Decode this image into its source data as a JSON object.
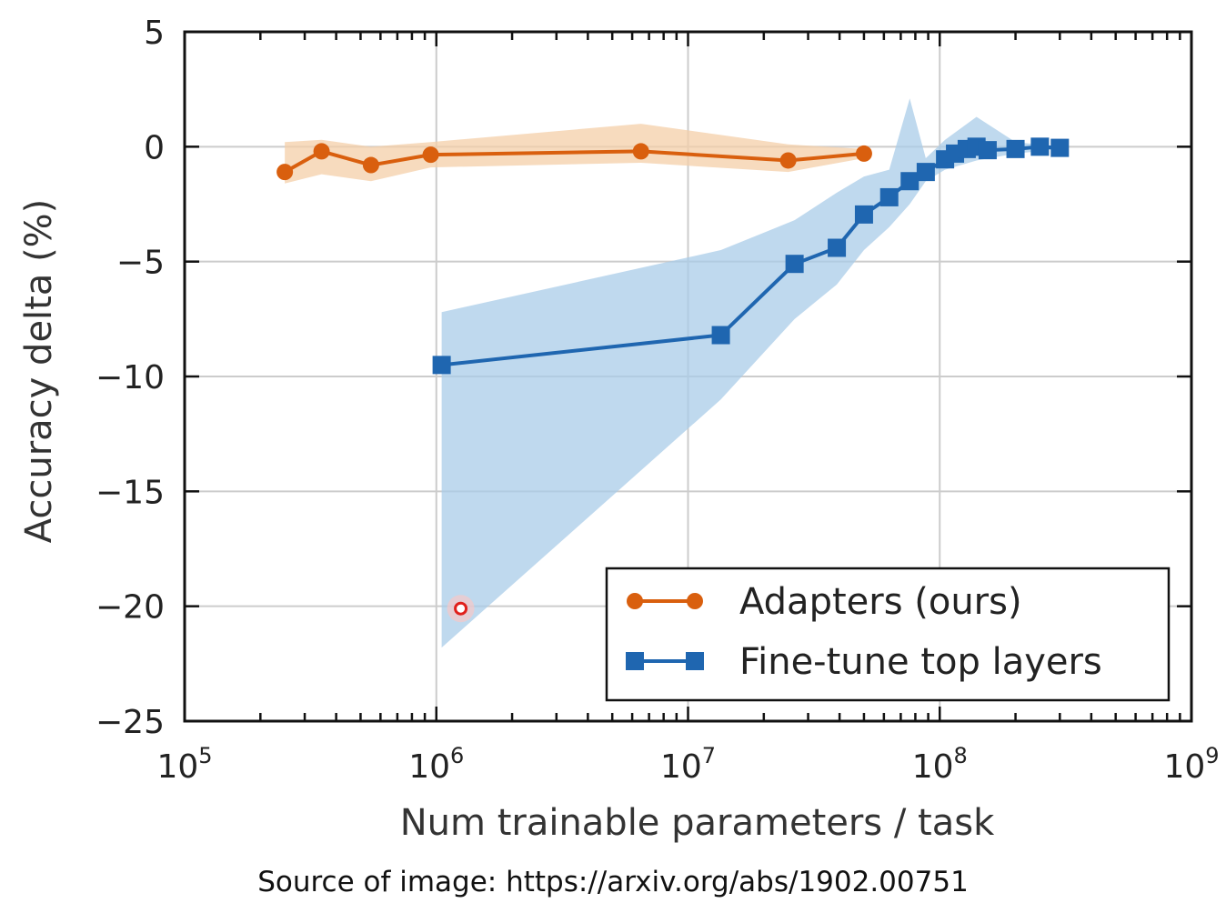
{
  "chart_data": {
    "type": "line",
    "xscale": "log",
    "xlim": [
      100000,
      1000000000
    ],
    "ylim": [
      -25,
      5
    ],
    "grid": true,
    "xlabel": "Num trainable parameters / task",
    "ylabel": "Accuracy delta (%)",
    "x_ticks": [
      {
        "value": 100000,
        "base": "10",
        "exp": "5"
      },
      {
        "value": 1000000,
        "base": "10",
        "exp": "6"
      },
      {
        "value": 10000000,
        "base": "10",
        "exp": "7"
      },
      {
        "value": 100000000,
        "base": "10",
        "exp": "8"
      },
      {
        "value": 1000000000,
        "base": "10",
        "exp": "9"
      }
    ],
    "y_ticks": [
      {
        "value": 5,
        "label": "5"
      },
      {
        "value": 0,
        "label": "0"
      },
      {
        "value": -5,
        "label": "−5"
      },
      {
        "value": -10,
        "label": "−10"
      },
      {
        "value": -15,
        "label": "−15"
      },
      {
        "value": -20,
        "label": "−20"
      },
      {
        "value": -25,
        "label": "−25"
      }
    ],
    "legend_position": "bottom-right",
    "series": [
      {
        "name": "Adapters (ours)",
        "color": "#d95f0e",
        "band_color": "#f4cfa8",
        "marker": "circle",
        "x": [
          250000,
          350000,
          550000,
          950000,
          6500000,
          25000000,
          50000000
        ],
        "y": [
          -1.1,
          -0.2,
          -0.8,
          -0.35,
          -0.2,
          -0.6,
          -0.3
        ],
        "band": {
          "x": [
            250000,
            350000,
            550000,
            950000,
            6500000,
            25000000,
            50000000
          ],
          "low": [
            -1.6,
            -1.2,
            -1.5,
            -0.9,
            -0.7,
            -1.1,
            -0.5
          ],
          "high": [
            0.2,
            0.3,
            0.0,
            0.2,
            1.0,
            0.1,
            -0.1
          ]
        }
      },
      {
        "name": "Fine-tune top layers",
        "color": "#1f66b0",
        "band_color": "#a9cce8",
        "marker": "square",
        "x": [
          1050000,
          13500000,
          26500000,
          39000000,
          50000000,
          63000000,
          76000000,
          88000000,
          105000000,
          115000000,
          128000000,
          140000000,
          155000000,
          200000000,
          250000000,
          300000000
        ],
        "y": [
          -9.5,
          -8.2,
          -5.1,
          -4.4,
          -2.95,
          -2.2,
          -1.5,
          -1.1,
          -0.55,
          -0.3,
          -0.1,
          0.0,
          -0.15,
          -0.1,
          0.0,
          -0.05
        ],
        "band": {
          "x": [
            1050000,
            13500000,
            26500000,
            39000000,
            50000000,
            63000000,
            76000000,
            88000000,
            105000000,
            140000000,
            200000000,
            300000000
          ],
          "low": [
            -21.8,
            -11.0,
            -7.5,
            -6.0,
            -4.5,
            -3.5,
            -2.5,
            -1.5,
            -1.0,
            -0.6,
            -0.3,
            -0.1
          ],
          "high": [
            -7.2,
            -4.5,
            -3.2,
            -2.0,
            -1.3,
            -1.0,
            2.1,
            -0.5,
            0.3,
            1.3,
            0.2,
            0.0
          ]
        }
      }
    ]
  },
  "highlight_point": {
    "x": 1250000,
    "y": -20.1,
    "color": "#e0201b"
  },
  "source_note": "Source of image: https://arxiv.org/abs/1902.00751"
}
